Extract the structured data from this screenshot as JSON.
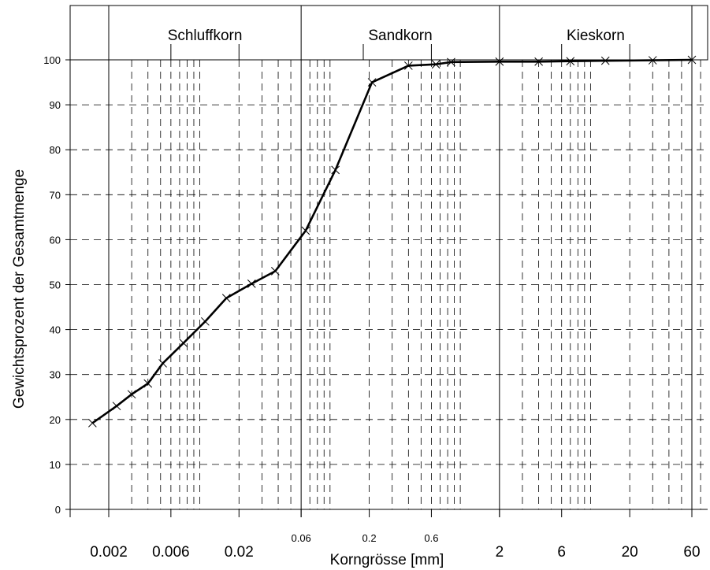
{
  "chart_data": {
    "type": "line",
    "xlabel": "Korngrösse [mm]",
    "ylabel": "Gewichtsprozent der Gesamtmenge",
    "xscale": "log",
    "xlim": [
      0.001,
      70
    ],
    "ylim": [
      0,
      100
    ],
    "y_ticks": [
      0,
      10,
      20,
      30,
      40,
      50,
      60,
      70,
      80,
      90,
      100
    ],
    "x_tick_labels": [
      {
        "value": 0.002,
        "label": "0.002",
        "style": "large"
      },
      {
        "value": 0.006,
        "label": "0.006",
        "style": "large"
      },
      {
        "value": 0.02,
        "label": "0.02",
        "style": "large"
      },
      {
        "value": 0.06,
        "label": "0.06",
        "style": "small"
      },
      {
        "value": 0.2,
        "label": "0.2",
        "style": "small"
      },
      {
        "value": 0.6,
        "label": "0.6",
        "style": "small"
      },
      {
        "value": 2,
        "label": "2",
        "style": "large"
      },
      {
        "value": 6,
        "label": "6",
        "style": "large"
      },
      {
        "value": 20,
        "label": "20",
        "style": "large"
      },
      {
        "value": 60,
        "label": "60",
        "style": "large"
      }
    ],
    "grid": true,
    "grid_style": "dashed",
    "bands": [
      {
        "label": "Schluffkorn",
        "from": 0.002,
        "to": 0.06
      },
      {
        "label": "Sandkorn",
        "from": 0.06,
        "to": 2
      },
      {
        "label": "Kieskorn",
        "from": 2,
        "to": 60
      }
    ],
    "series": [
      {
        "marker": "x",
        "color": "#000000",
        "x": [
          0.0015,
          0.0023,
          0.003,
          0.004,
          0.0052,
          0.0075,
          0.011,
          0.016,
          0.025,
          0.038,
          0.065,
          0.11,
          0.21,
          0.4,
          0.65,
          0.85,
          2,
          4,
          7,
          13,
          30,
          60
        ],
        "y": [
          19.2,
          23.0,
          25.6,
          28.0,
          32.5,
          37.0,
          41.8,
          47.0,
          50.2,
          53.0,
          62.0,
          75.5,
          95.0,
          98.7,
          99.0,
          99.5,
          99.6,
          99.6,
          99.7,
          99.8,
          99.9,
          100
        ]
      }
    ]
  }
}
